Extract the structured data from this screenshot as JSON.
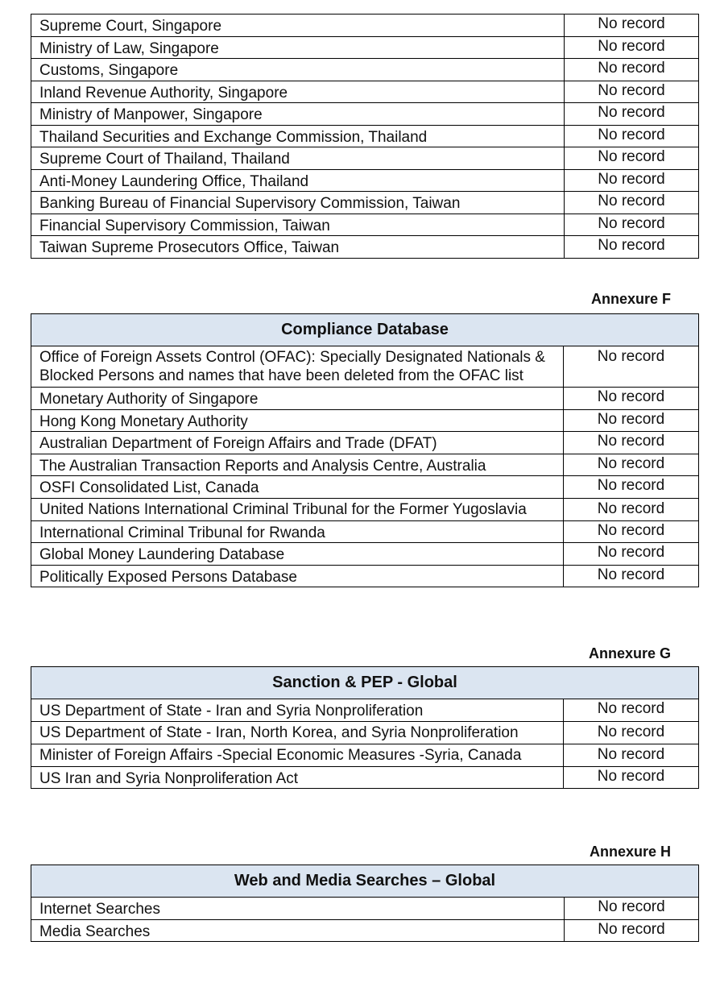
{
  "table_e": {
    "rows": [
      {
        "name": "Supreme Court, Singapore",
        "value": "No record"
      },
      {
        "name": "Ministry of Law, Singapore",
        "value": "No record"
      },
      {
        "name": "Customs, Singapore",
        "value": "No record"
      },
      {
        "name": "Inland Revenue Authority, Singapore",
        "value": "No record"
      },
      {
        "name": "Ministry of Manpower, Singapore",
        "value": "No record"
      },
      {
        "name": "Thailand Securities and Exchange Commission, Thailand",
        "value": "No record"
      },
      {
        "name": "Supreme Court of Thailand, Thailand",
        "value": "No record"
      },
      {
        "name": "Anti-Money Laundering Office, Thailand",
        "value": "No record"
      },
      {
        "name": "Banking Bureau of Financial Supervisory Commission, Taiwan",
        "value": "No record"
      },
      {
        "name": "Financial Supervisory Commission, Taiwan",
        "value": "No record"
      },
      {
        "name": "Taiwan Supreme Prosecutors Office, Taiwan",
        "value": "No record"
      }
    ]
  },
  "table_f": {
    "annexure": "Annexure F",
    "title": "Compliance Database",
    "rows": [
      {
        "name": "Office of Foreign Assets Control (OFAC): Specially Designated Nationals & Blocked Persons and names that have been deleted from the OFAC list",
        "value": "No record"
      },
      {
        "name": "Monetary Authority of Singapore",
        "value": "No record"
      },
      {
        "name": "Hong Kong Monetary Authority",
        "value": "No record"
      },
      {
        "name": "Australian Department of Foreign Affairs and Trade (DFAT)",
        "value": "No record"
      },
      {
        "name": "The Australian Transaction Reports and Analysis Centre, Australia",
        "value": "No record"
      },
      {
        "name": "OSFI Consolidated List, Canada",
        "value": "No record"
      },
      {
        "name": "United Nations International Criminal Tribunal for the Former Yugoslavia",
        "value": "No record"
      },
      {
        "name": "International Criminal Tribunal for Rwanda",
        "value": "No record"
      },
      {
        "name": "Global Money Laundering Database",
        "value": "No record"
      },
      {
        "name": "Politically Exposed Persons Database",
        "value": "No record"
      }
    ]
  },
  "table_g": {
    "annexure": "Annexure G",
    "title": "Sanction & PEP - Global",
    "rows": [
      {
        "name": "US Department of State - Iran and Syria Nonproliferation",
        "value": "No record"
      },
      {
        "name": "US Department of State - Iran, North Korea, and Syria Nonproliferation",
        "value": "No record"
      },
      {
        "name": "Minister of Foreign Affairs -Special Economic Measures -Syria, Canada",
        "value": "No record"
      },
      {
        "name": "US Iran and Syria Nonproliferation Act",
        "value": "No record"
      }
    ]
  },
  "table_h": {
    "annexure": "Annexure H",
    "title": "Web and Media Searches – Global",
    "rows": [
      {
        "name": "Internet Searches",
        "value": "No record"
      },
      {
        "name": "Media Searches",
        "value": "No record"
      }
    ]
  }
}
